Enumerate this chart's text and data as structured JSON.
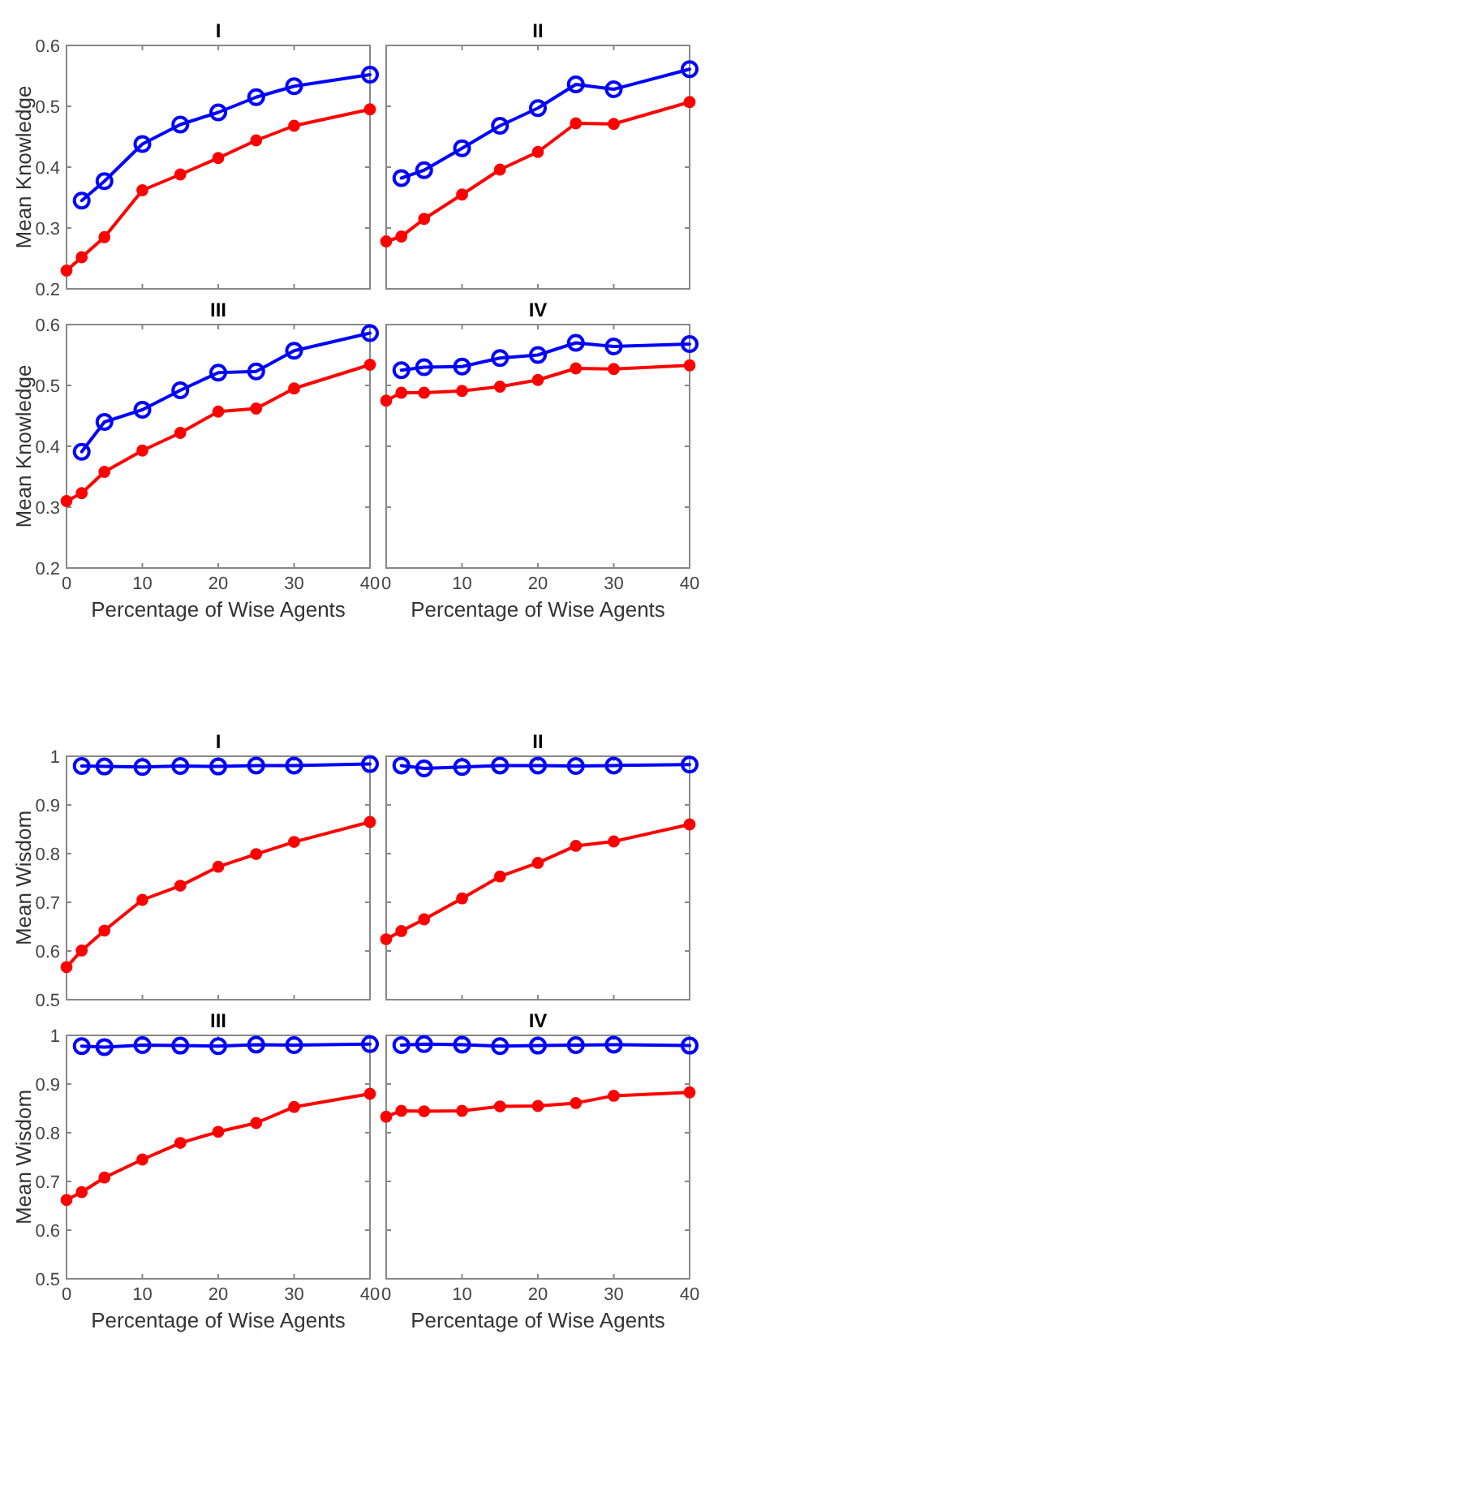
{
  "chart_data": [
    {
      "type": "line",
      "title": "I",
      "ylabel": "Mean Knowledge",
      "xlim": [
        0,
        40
      ],
      "xticks": [
        0,
        10,
        20,
        30,
        40
      ],
      "ylim": [
        0.2,
        0.6
      ],
      "yticks": [
        0.2,
        0.3,
        0.4,
        0.5,
        0.6
      ],
      "tick_labels": "y",
      "marker": "circle",
      "series": [
        {
          "color": "#0000ff",
          "x": [
            2,
            5,
            10,
            15,
            20,
            25,
            30,
            40
          ],
          "values": [
            0.345,
            0.377,
            0.438,
            0.47,
            0.49,
            0.515,
            0.533,
            0.552
          ]
        },
        {
          "color": "#ff0000",
          "x": [
            0,
            2,
            5,
            10,
            15,
            20,
            25,
            30,
            40
          ],
          "values": [
            0.23,
            0.252,
            0.285,
            0.362,
            0.388,
            0.415,
            0.444,
            0.468,
            0.495
          ]
        }
      ]
    },
    {
      "type": "line",
      "title": "II",
      "xlim": [
        0,
        40
      ],
      "xticks": [
        0,
        10,
        20,
        30,
        40
      ],
      "ylim": [
        0.2,
        0.6
      ],
      "yticks": [
        0.2,
        0.3,
        0.4,
        0.5,
        0.6
      ],
      "tick_labels": false,
      "marker": "circle",
      "series": [
        {
          "color": "#0000ff",
          "x": [
            2,
            5,
            10,
            15,
            20,
            25,
            30,
            40
          ],
          "values": [
            0.382,
            0.395,
            0.431,
            0.468,
            0.497,
            0.536,
            0.528,
            0.561
          ]
        },
        {
          "color": "#ff0000",
          "x": [
            0,
            2,
            5,
            10,
            15,
            20,
            25,
            30,
            40
          ],
          "values": [
            0.278,
            0.286,
            0.315,
            0.355,
            0.396,
            0.425,
            0.472,
            0.471,
            0.507
          ]
        }
      ]
    },
    {
      "type": "line",
      "title": "III",
      "xlabel": "Percentage of Wise Agents",
      "ylabel": "Mean Knowledge",
      "xlim": [
        0,
        40
      ],
      "xticks": [
        0,
        10,
        20,
        30,
        40
      ],
      "ylim": [
        0.2,
        0.6
      ],
      "yticks": [
        0.2,
        0.3,
        0.4,
        0.5,
        0.6
      ],
      "marker": "circle",
      "series": [
        {
          "color": "#0000ff",
          "x": [
            2,
            5,
            10,
            15,
            20,
            25,
            30,
            40
          ],
          "values": [
            0.391,
            0.44,
            0.46,
            0.492,
            0.521,
            0.523,
            0.557,
            0.586
          ]
        },
        {
          "color": "#ff0000",
          "x": [
            0,
            2,
            5,
            10,
            15,
            20,
            25,
            30,
            40
          ],
          "values": [
            0.31,
            0.323,
            0.358,
            0.393,
            0.422,
            0.457,
            0.462,
            0.495,
            0.534
          ]
        }
      ]
    },
    {
      "type": "line",
      "title": "IV",
      "xlabel": "Percentage of Wise Agents",
      "xlim": [
        0,
        40
      ],
      "xticks": [
        0,
        10,
        20,
        30,
        40
      ],
      "ylim": [
        0.2,
        0.6
      ],
      "yticks": [
        0.2,
        0.3,
        0.4,
        0.5,
        0.6
      ],
      "tick_labels": "x",
      "marker": "circle",
      "series": [
        {
          "color": "#0000ff",
          "x": [
            2,
            5,
            10,
            15,
            20,
            25,
            30,
            40
          ],
          "values": [
            0.525,
            0.53,
            0.531,
            0.545,
            0.55,
            0.57,
            0.564,
            0.568
          ]
        },
        {
          "color": "#ff0000",
          "x": [
            0,
            2,
            5,
            10,
            15,
            20,
            25,
            30,
            40
          ],
          "values": [
            0.475,
            0.488,
            0.488,
            0.491,
            0.498,
            0.509,
            0.528,
            0.527,
            0.533
          ]
        }
      ]
    },
    {
      "type": "line",
      "title": "I",
      "ylabel": "Mean Wisdom",
      "xlim": [
        0,
        40
      ],
      "xticks": [
        0,
        10,
        20,
        30,
        40
      ],
      "ylim": [
        0.5,
        1
      ],
      "yticks": [
        0.5,
        0.6,
        0.7,
        0.8,
        0.9,
        1
      ],
      "tick_labels": "y",
      "marker": "circle",
      "series": [
        {
          "color": "#0000ff",
          "x": [
            2,
            5,
            10,
            15,
            20,
            25,
            30,
            40
          ],
          "values": [
            0.98,
            0.979,
            0.978,
            0.98,
            0.979,
            0.981,
            0.981,
            0.984
          ]
        },
        {
          "color": "#ff0000",
          "x": [
            0,
            2,
            5,
            10,
            15,
            20,
            25,
            30,
            40
          ],
          "values": [
            0.567,
            0.601,
            0.642,
            0.705,
            0.734,
            0.773,
            0.799,
            0.824,
            0.865
          ]
        }
      ]
    },
    {
      "type": "line",
      "title": "II",
      "xlim": [
        0,
        40
      ],
      "xticks": [
        0,
        10,
        20,
        30,
        40
      ],
      "ylim": [
        0.5,
        1
      ],
      "yticks": [
        0.5,
        0.6,
        0.7,
        0.8,
        0.9,
        1
      ],
      "tick_labels": false,
      "marker": "circle",
      "series": [
        {
          "color": "#0000ff",
          "x": [
            2,
            5,
            10,
            15,
            20,
            25,
            30,
            40
          ],
          "values": [
            0.981,
            0.975,
            0.978,
            0.981,
            0.981,
            0.98,
            0.981,
            0.983
          ]
        },
        {
          "color": "#ff0000",
          "x": [
            0,
            2,
            5,
            10,
            15,
            20,
            25,
            30,
            40
          ],
          "values": [
            0.624,
            0.641,
            0.665,
            0.708,
            0.753,
            0.781,
            0.816,
            0.825,
            0.86
          ]
        }
      ]
    },
    {
      "type": "line",
      "title": "III",
      "xlabel": "Percentage of Wise Agents",
      "ylabel": "Mean Wisdom",
      "xlim": [
        0,
        40
      ],
      "xticks": [
        0,
        10,
        20,
        30,
        40
      ],
      "ylim": [
        0.5,
        1
      ],
      "yticks": [
        0.5,
        0.6,
        0.7,
        0.8,
        0.9,
        1
      ],
      "marker": "circle",
      "series": [
        {
          "color": "#0000ff",
          "x": [
            2,
            5,
            10,
            15,
            20,
            25,
            30,
            40
          ],
          "values": [
            0.978,
            0.976,
            0.98,
            0.979,
            0.978,
            0.981,
            0.98,
            0.982
          ]
        },
        {
          "color": "#ff0000",
          "x": [
            0,
            2,
            5,
            10,
            15,
            20,
            25,
            30,
            40
          ],
          "values": [
            0.662,
            0.678,
            0.708,
            0.745,
            0.779,
            0.802,
            0.82,
            0.853,
            0.88
          ]
        }
      ]
    },
    {
      "type": "line",
      "title": "IV",
      "xlabel": "Percentage of Wise Agents",
      "xlim": [
        0,
        40
      ],
      "xticks": [
        0,
        10,
        20,
        30,
        40
      ],
      "ylim": [
        0.5,
        1
      ],
      "yticks": [
        0.5,
        0.6,
        0.7,
        0.8,
        0.9,
        1
      ],
      "tick_labels": "x",
      "marker": "circle",
      "series": [
        {
          "color": "#0000ff",
          "x": [
            2,
            5,
            10,
            15,
            20,
            25,
            30,
            40
          ],
          "values": [
            0.98,
            0.982,
            0.981,
            0.978,
            0.979,
            0.98,
            0.981,
            0.979
          ]
        },
        {
          "color": "#ff0000",
          "x": [
            0,
            2,
            5,
            10,
            15,
            20,
            25,
            30,
            40
          ],
          "values": [
            0.833,
            0.845,
            0.844,
            0.845,
            0.854,
            0.855,
            0.861,
            0.876,
            0.883
          ]
        }
      ]
    }
  ]
}
